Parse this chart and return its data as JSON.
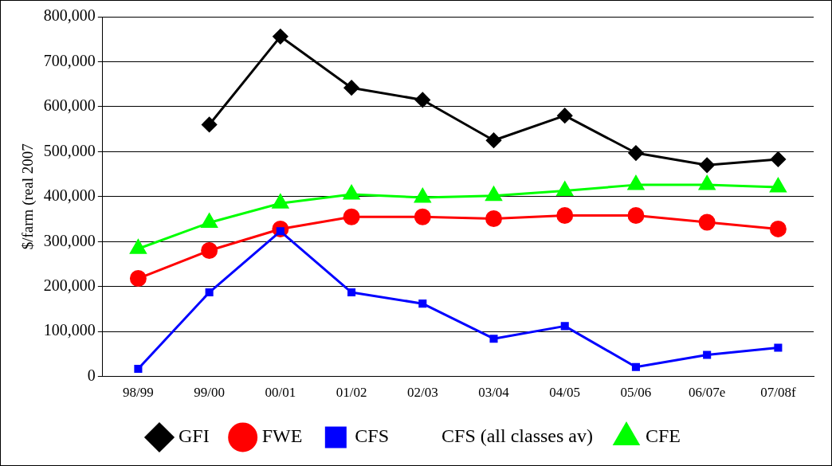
{
  "chart_data": {
    "type": "line",
    "ylabel": "$/farm (real 2007",
    "categories": [
      "98/99",
      "99/00",
      "00/01",
      "01/02",
      "02/03",
      "03/04",
      "04/05",
      "05/06",
      "06/07e",
      "07/08f"
    ],
    "series": [
      {
        "name": "GFI",
        "color": "#000000",
        "marker": "diamond",
        "values": [
          null,
          560000,
          756000,
          642000,
          615000,
          525000,
          580000,
          497000,
          470000,
          483000
        ]
      },
      {
        "name": "FWE",
        "color": "#ff0000",
        "marker": "circle",
        "values": [
          218000,
          280000,
          328000,
          355000,
          355000,
          351000,
          358000,
          358000,
          343000,
          328000
        ]
      },
      {
        "name": "CFS",
        "color": "#0000ff",
        "marker": "square",
        "values": [
          17000,
          187000,
          323000,
          187000,
          162000,
          84000,
          112000,
          21000,
          48000,
          64000
        ]
      },
      {
        "name": "CFS (all classes av)",
        "marker": "none",
        "values": [
          null,
          null,
          null,
          null,
          null,
          null,
          null,
          null,
          null,
          null
        ]
      },
      {
        "name": "CFE",
        "color": "#00ff00",
        "marker": "triangle",
        "values": [
          284000,
          342000,
          385000,
          405000,
          398000,
          402000,
          413000,
          426000,
          426000,
          421000
        ]
      }
    ],
    "ylim": [
      0,
      800000
    ],
    "yticks": [
      {
        "value": 0,
        "label": "0"
      },
      {
        "value": 100000,
        "label": "100,000"
      },
      {
        "value": 200000,
        "label": "200,000"
      },
      {
        "value": 300000,
        "label": "300,000"
      },
      {
        "value": 400000,
        "label": "400,000"
      },
      {
        "value": 500000,
        "label": "500,000"
      },
      {
        "value": 600000,
        "label": "600,000"
      },
      {
        "value": 700000,
        "label": "700,000"
      },
      {
        "value": 800000,
        "label": "800,000"
      }
    ],
    "grid": "y",
    "legend": "bottom",
    "line_style": "solid"
  }
}
